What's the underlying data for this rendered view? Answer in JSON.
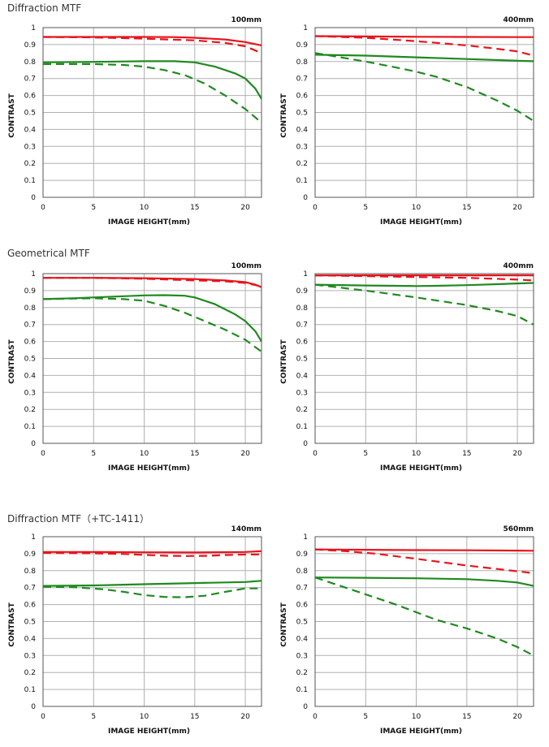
{
  "sections": [
    {
      "title": "Diffraction MTF"
    },
    {
      "title": "Geometrical MTF"
    },
    {
      "title": "Diffraction MTF（+TC-1411）"
    }
  ],
  "colors": {
    "red": "#e8141c",
    "green": "#1f8a1f",
    "grid": "#b0b0b0",
    "frame": "#555555"
  },
  "chart_data": [
    {
      "type": "line",
      "focal": "100mm",
      "xlabel": "IMAGE HEIGHT(mm)",
      "ylabel": "CONTRAST",
      "xlim": [
        0,
        21.6
      ],
      "ylim": [
        0,
        1
      ],
      "xticks": [
        "0",
        "5",
        "10",
        "15",
        "20"
      ],
      "yticks": [
        "0",
        "0.1",
        "0.2",
        "0.3",
        "0.4",
        "0.5",
        "0.6",
        "0.7",
        "0.8",
        "0.9",
        "1"
      ],
      "grid": true,
      "series": [
        {
          "color": "red",
          "style": "solid",
          "x": [
            0,
            5,
            10,
            13,
            15,
            18,
            20,
            21.6
          ],
          "y": [
            0.945,
            0.945,
            0.945,
            0.944,
            0.94,
            0.93,
            0.915,
            0.895
          ]
        },
        {
          "color": "red",
          "style": "dashed",
          "x": [
            0,
            5,
            10,
            15,
            18,
            20,
            21.6
          ],
          "y": [
            0.945,
            0.942,
            0.935,
            0.925,
            0.91,
            0.89,
            0.85
          ]
        },
        {
          "color": "green",
          "style": "solid",
          "x": [
            0,
            5,
            10,
            13,
            15,
            17,
            19,
            20,
            21,
            21.6
          ],
          "y": [
            0.795,
            0.798,
            0.802,
            0.802,
            0.795,
            0.77,
            0.73,
            0.7,
            0.64,
            0.58
          ]
        },
        {
          "color": "green",
          "style": "dashed",
          "x": [
            0,
            5,
            8,
            10,
            12,
            14,
            16,
            18,
            20,
            21.6
          ],
          "y": [
            0.785,
            0.785,
            0.78,
            0.77,
            0.75,
            0.72,
            0.67,
            0.6,
            0.52,
            0.44
          ]
        }
      ]
    },
    {
      "type": "line",
      "focal": "400mm",
      "xlabel": "IMAGE HEIGHT(mm)",
      "ylabel": "CONTRAST",
      "xlim": [
        0,
        21.6
      ],
      "ylim": [
        0,
        1
      ],
      "xticks": [
        "0",
        "5",
        "10",
        "15",
        "20"
      ],
      "yticks": [
        "0",
        "0.1",
        "0.2",
        "0.3",
        "0.4",
        "0.5",
        "0.6",
        "0.7",
        "0.8",
        "0.9",
        "1"
      ],
      "grid": true,
      "series": [
        {
          "color": "red",
          "style": "solid",
          "x": [
            0,
            5,
            10,
            15,
            20,
            21.6
          ],
          "y": [
            0.95,
            0.948,
            0.946,
            0.945,
            0.944,
            0.944
          ]
        },
        {
          "color": "red",
          "style": "dashed",
          "x": [
            0,
            5,
            10,
            15,
            18,
            20,
            21.6
          ],
          "y": [
            0.95,
            0.94,
            0.92,
            0.895,
            0.875,
            0.86,
            0.835
          ]
        },
        {
          "color": "green",
          "style": "solid",
          "x": [
            0,
            5,
            10,
            15,
            20,
            21.6
          ],
          "y": [
            0.84,
            0.835,
            0.825,
            0.815,
            0.805,
            0.802
          ]
        },
        {
          "color": "green",
          "style": "dashed",
          "x": [
            0,
            2,
            5,
            8,
            10,
            12,
            15,
            18,
            20,
            21.6
          ],
          "y": [
            0.85,
            0.83,
            0.8,
            0.765,
            0.74,
            0.71,
            0.65,
            0.57,
            0.51,
            0.45
          ]
        }
      ]
    },
    {
      "type": "line",
      "focal": "100mm",
      "xlabel": "IMAGE HEIGHT(mm)",
      "ylabel": "CONTRAST",
      "xlim": [
        0,
        21.6
      ],
      "ylim": [
        0,
        1
      ],
      "xticks": [
        "0",
        "5",
        "10",
        "15",
        "20"
      ],
      "yticks": [
        "0",
        "0.1",
        "0.2",
        "0.3",
        "0.4",
        "0.5",
        "0.6",
        "0.7",
        "0.8",
        "0.9",
        "1"
      ],
      "grid": true,
      "series": [
        {
          "color": "red",
          "style": "solid",
          "x": [
            0,
            5,
            10,
            15,
            18,
            20,
            21,
            21.6
          ],
          "y": [
            0.975,
            0.975,
            0.973,
            0.968,
            0.96,
            0.95,
            0.935,
            0.92
          ]
        },
        {
          "color": "red",
          "style": "dashed",
          "x": [
            0,
            5,
            10,
            15,
            18,
            20,
            21.6
          ],
          "y": [
            0.975,
            0.975,
            0.97,
            0.96,
            0.955,
            0.945,
            0.925
          ]
        },
        {
          "color": "green",
          "style": "solid",
          "x": [
            0,
            3,
            6,
            10,
            12,
            14,
            15,
            17,
            19,
            20,
            21,
            21.6
          ],
          "y": [
            0.85,
            0.855,
            0.862,
            0.872,
            0.873,
            0.87,
            0.86,
            0.82,
            0.76,
            0.72,
            0.66,
            0.6
          ]
        },
        {
          "color": "green",
          "style": "dashed",
          "x": [
            0,
            5,
            8,
            10,
            12,
            14,
            16,
            18,
            20,
            21.6
          ],
          "y": [
            0.85,
            0.855,
            0.85,
            0.84,
            0.81,
            0.77,
            0.72,
            0.67,
            0.61,
            0.54
          ]
        }
      ]
    },
    {
      "type": "line",
      "focal": "400mm",
      "xlabel": "IMAGE HEIGHT(mm)",
      "ylabel": "CONTRAST",
      "xlim": [
        0,
        21.6
      ],
      "ylim": [
        0,
        1
      ],
      "xticks": [
        "0",
        "5",
        "10",
        "15",
        "20"
      ],
      "yticks": [
        "0",
        "0.1",
        "0.2",
        "0.3",
        "0.4",
        "0.5",
        "0.6",
        "0.7",
        "0.8",
        "0.9",
        "1"
      ],
      "grid": true,
      "series": [
        {
          "color": "red",
          "style": "solid",
          "x": [
            0,
            5,
            10,
            15,
            20,
            21.6
          ],
          "y": [
            0.99,
            0.99,
            0.99,
            0.99,
            0.99,
            0.99
          ]
        },
        {
          "color": "red",
          "style": "dashed",
          "x": [
            0,
            5,
            10,
            15,
            20,
            21.6
          ],
          "y": [
            0.99,
            0.985,
            0.98,
            0.975,
            0.965,
            0.96
          ]
        },
        {
          "color": "green",
          "style": "solid",
          "x": [
            0,
            5,
            8,
            10,
            12,
            15,
            18,
            20,
            21.6
          ],
          "y": [
            0.935,
            0.93,
            0.928,
            0.927,
            0.928,
            0.932,
            0.938,
            0.942,
            0.945
          ]
        },
        {
          "color": "green",
          "style": "dashed",
          "x": [
            0,
            5,
            10,
            15,
            18,
            20,
            21.6
          ],
          "y": [
            0.935,
            0.9,
            0.86,
            0.815,
            0.78,
            0.75,
            0.7
          ]
        }
      ]
    },
    {
      "type": "line",
      "focal": "140mm",
      "xlabel": "IMAGE HEIGHT(mm)",
      "ylabel": "CONTRAST",
      "xlim": [
        0,
        21.6
      ],
      "ylim": [
        0,
        1
      ],
      "xticks": [
        "0",
        "5",
        "10",
        "15",
        "20"
      ],
      "yticks": [
        "0",
        "0.1",
        "0.2",
        "0.3",
        "0.4",
        "0.5",
        "0.6",
        "0.7",
        "0.8",
        "0.9",
        "1"
      ],
      "grid": true,
      "series": [
        {
          "color": "red",
          "style": "solid",
          "x": [
            0,
            5,
            10,
            15,
            20,
            21.6
          ],
          "y": [
            0.91,
            0.91,
            0.908,
            0.907,
            0.91,
            0.915
          ]
        },
        {
          "color": "red",
          "style": "dashed",
          "x": [
            0,
            5,
            8,
            10,
            12,
            14,
            16,
            18,
            20,
            21.6
          ],
          "y": [
            0.905,
            0.902,
            0.898,
            0.893,
            0.888,
            0.886,
            0.887,
            0.892,
            0.895,
            0.895
          ]
        },
        {
          "color": "green",
          "style": "solid",
          "x": [
            0,
            5,
            10,
            15,
            20,
            21.6
          ],
          "y": [
            0.71,
            0.713,
            0.72,
            0.727,
            0.733,
            0.74
          ]
        },
        {
          "color": "green",
          "style": "dashed",
          "x": [
            0,
            3,
            6,
            8,
            10,
            12,
            14,
            16,
            18,
            20,
            21.6
          ],
          "y": [
            0.705,
            0.703,
            0.69,
            0.675,
            0.656,
            0.645,
            0.643,
            0.652,
            0.675,
            0.695,
            0.695
          ]
        }
      ]
    },
    {
      "type": "line",
      "focal": "560mm",
      "xlabel": "IMAGE HEIGHT(mm)",
      "ylabel": "CONTRAST",
      "xlim": [
        0,
        21.6
      ],
      "ylim": [
        0,
        1
      ],
      "xticks": [
        "0",
        "5",
        "10",
        "15",
        "20"
      ],
      "yticks": [
        "0",
        "0.1",
        "0.2",
        "0.3",
        "0.4",
        "0.5",
        "0.6",
        "0.7",
        "0.8",
        "0.9",
        "1"
      ],
      "grid": true,
      "series": [
        {
          "color": "red",
          "style": "solid",
          "x": [
            0,
            5,
            10,
            15,
            20,
            21.6
          ],
          "y": [
            0.925,
            0.923,
            0.921,
            0.92,
            0.918,
            0.917
          ]
        },
        {
          "color": "red",
          "style": "dashed",
          "x": [
            0,
            3,
            6,
            10,
            15,
            18,
            21.6
          ],
          "y": [
            0.925,
            0.915,
            0.9,
            0.87,
            0.83,
            0.81,
            0.785
          ]
        },
        {
          "color": "green",
          "style": "solid",
          "x": [
            0,
            5,
            10,
            15,
            18,
            20,
            21.6
          ],
          "y": [
            0.76,
            0.758,
            0.755,
            0.75,
            0.74,
            0.73,
            0.71
          ]
        },
        {
          "color": "green",
          "style": "dashed",
          "x": [
            0,
            3,
            6,
            8,
            10,
            12,
            15,
            18,
            20,
            21.6
          ],
          "y": [
            0.76,
            0.7,
            0.64,
            0.6,
            0.555,
            0.51,
            0.46,
            0.4,
            0.35,
            0.3
          ]
        }
      ]
    }
  ]
}
